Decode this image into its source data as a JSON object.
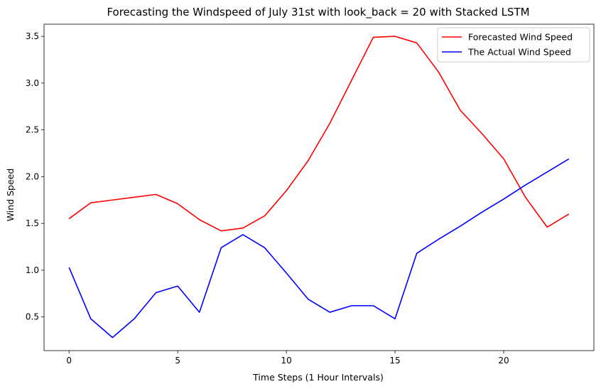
{
  "chart_data": {
    "type": "line",
    "title": "Forecasting the Windspeed of July 31st with look_back = 20 with Stacked LSTM",
    "xlabel": "Time Steps (1 Hour Intervals)",
    "ylabel": "Wind Speed",
    "xlim": [
      -1.15,
      24.15
    ],
    "ylim": [
      0.14,
      3.63
    ],
    "xticks": [
      0,
      5,
      10,
      15,
      20
    ],
    "yticks": [
      0.5,
      1.0,
      1.5,
      2.0,
      2.5,
      3.0,
      3.5
    ],
    "xtick_labels": [
      "0",
      "5",
      "10",
      "15",
      "20"
    ],
    "ytick_labels": [
      "0.5",
      "1.0",
      "1.5",
      "2.0",
      "2.5",
      "3.0",
      "3.5"
    ],
    "grid": false,
    "legend_position": "top-right",
    "x": [
      0,
      1,
      2,
      3,
      4,
      5,
      6,
      7,
      8,
      9,
      10,
      11,
      12,
      13,
      14,
      15,
      16,
      17,
      18,
      19,
      20,
      21,
      22,
      23
    ],
    "series": [
      {
        "name": "Forecasted Wind Speed",
        "color": "#ff0000",
        "values": [
          1.55,
          1.72,
          1.75,
          1.78,
          1.81,
          1.71,
          1.54,
          1.42,
          1.45,
          1.58,
          1.85,
          2.17,
          2.57,
          3.03,
          3.49,
          3.5,
          3.43,
          3.12,
          2.71,
          2.46,
          2.19,
          1.78,
          1.46,
          1.6
        ]
      },
      {
        "name": "The Actual Wind Speed",
        "color": "#0000ff",
        "values": [
          1.03,
          0.48,
          0.28,
          0.48,
          0.76,
          0.83,
          0.55,
          1.24,
          1.38,
          1.24,
          0.97,
          0.69,
          0.55,
          0.62,
          0.62,
          0.48,
          1.18,
          1.33,
          1.47,
          1.62,
          1.76,
          1.91,
          2.05,
          2.19
        ]
      }
    ]
  }
}
